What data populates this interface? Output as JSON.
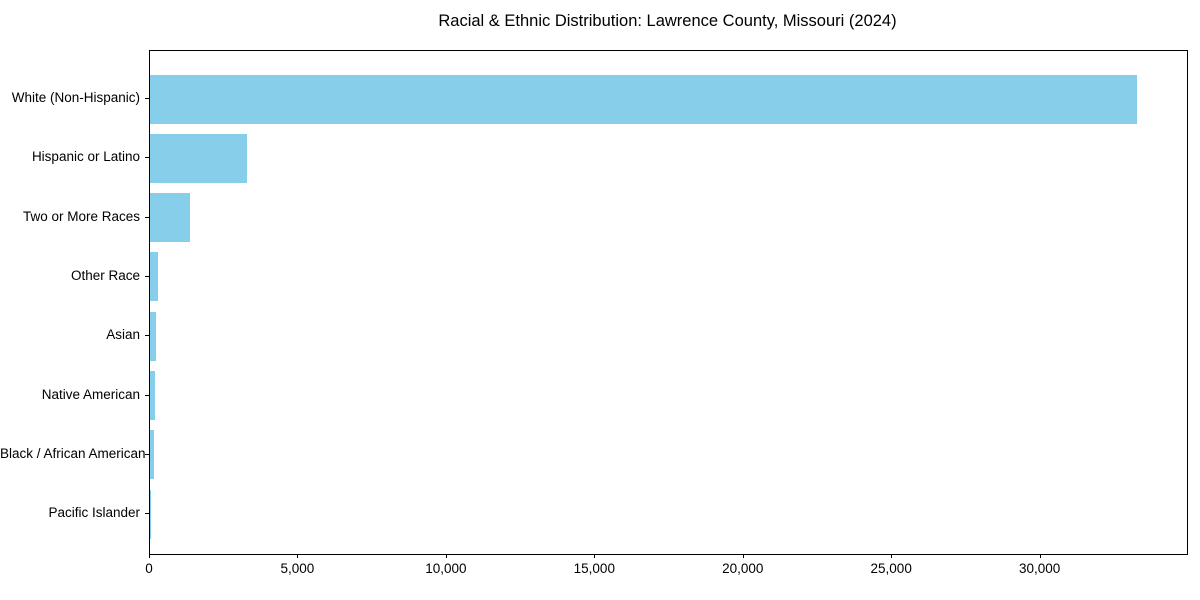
{
  "title": "Racial & Ethnic Distribution: Lawrence County, Missouri (2024)",
  "chart_data": {
    "type": "bar",
    "orientation": "horizontal",
    "title": "Racial & Ethnic Distribution: Lawrence County, Missouri (2024)",
    "xlabel": "",
    "ylabel": "",
    "categories": [
      "White (Non-Hispanic)",
      "Hispanic or Latino",
      "Two or More Races",
      "Other Race",
      "Asian",
      "Native American",
      "Black / African American",
      "Pacific Islander"
    ],
    "values": [
      33250,
      3270,
      1350,
      260,
      215,
      185,
      150,
      20
    ],
    "xlim": [
      0,
      34930
    ],
    "x_ticks": [
      0,
      5000,
      10000,
      15000,
      20000,
      25000,
      30000
    ],
    "x_tick_labels": [
      "0",
      "5,000",
      "10,000",
      "15,000",
      "20,000",
      "25,000",
      "30,000"
    ],
    "bar_color": "#87CEEB",
    "grid": false,
    "legend_position": "none"
  }
}
